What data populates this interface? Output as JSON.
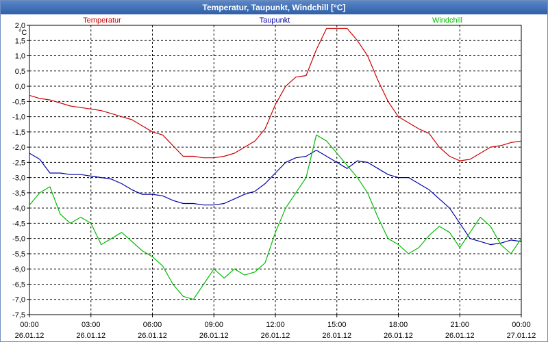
{
  "window": {
    "title": "Temperatur, Taupunkt, Windchill [°C]"
  },
  "chart_data": {
    "type": "line",
    "title": "Temperatur, Taupunkt, Windchill [°C]",
    "ylabel": "°C",
    "ylim": [
      -7.5,
      2.0
    ],
    "y_step": 0.5,
    "y_ticks": [
      "2,0",
      "1,5",
      "1,0",
      "0,5",
      "0,0",
      "-0,5",
      "-1,0",
      "-1,5",
      "-2,0",
      "-2,5",
      "-3,0",
      "-3,5",
      "-4,0",
      "-4,5",
      "-5,0",
      "-5,5",
      "-6,0",
      "-6,5",
      "-7,0",
      "-7,5"
    ],
    "xlim": [
      0,
      24
    ],
    "x_ticks": [
      {
        "time": "00:00",
        "date": "26.01.12"
      },
      {
        "time": "03:00",
        "date": "26.01.12"
      },
      {
        "time": "06:00",
        "date": "26.01.12"
      },
      {
        "time": "09:00",
        "date": "26.01.12"
      },
      {
        "time": "12:00",
        "date": "26.01.12"
      },
      {
        "time": "15:00",
        "date": "26.01.12"
      },
      {
        "time": "18:00",
        "date": "26.01.12"
      },
      {
        "time": "21:00",
        "date": "26.01.12"
      },
      {
        "time": "00:00",
        "date": "27.01.12"
      }
    ],
    "grid": true,
    "legend_position": "top",
    "series": [
      {
        "name": "Temperatur",
        "color": "#cc0000",
        "x": [
          0,
          0.5,
          1,
          1.5,
          2,
          2.5,
          3,
          3.5,
          4,
          4.5,
          5,
          5.5,
          6,
          6.5,
          7,
          7.5,
          8,
          8.5,
          9,
          9.5,
          10,
          10.5,
          11,
          11.5,
          12,
          12.5,
          13,
          13.5,
          14,
          14.5,
          15,
          15.5,
          16,
          16.5,
          17,
          17.5,
          18,
          18.5,
          19,
          19.5,
          20,
          20.5,
          21,
          21.5,
          22,
          22.5,
          23,
          23.5,
          24
        ],
        "values": [
          -0.3,
          -0.4,
          -0.45,
          -0.55,
          -0.65,
          -0.7,
          -0.75,
          -0.8,
          -0.9,
          -1.0,
          -1.1,
          -1.3,
          -1.5,
          -1.6,
          -1.95,
          -2.3,
          -2.3,
          -2.35,
          -2.35,
          -2.3,
          -2.2,
          -2.0,
          -1.8,
          -1.4,
          -0.6,
          0.0,
          0.3,
          0.35,
          1.2,
          1.9,
          1.9,
          1.9,
          1.5,
          1.0,
          0.2,
          -0.5,
          -1.0,
          -1.2,
          -1.4,
          -1.55,
          -2.0,
          -2.3,
          -2.45,
          -2.4,
          -2.2,
          -2.0,
          -1.95,
          -1.85,
          -1.8
        ]
      },
      {
        "name": "Taupunkt",
        "color": "#0000aa",
        "x": [
          0,
          0.5,
          1,
          1.5,
          2,
          2.5,
          3,
          3.5,
          4,
          4.5,
          5,
          5.5,
          6,
          6.5,
          7,
          7.5,
          8,
          8.5,
          9,
          9.5,
          10,
          10.5,
          11,
          11.5,
          12,
          12.5,
          13,
          13.5,
          14,
          14.5,
          15,
          15.5,
          16,
          16.5,
          17,
          17.5,
          18,
          18.5,
          19,
          19.5,
          20,
          20.5,
          21,
          21.5,
          22,
          22.5,
          23,
          23.5,
          24
        ],
        "values": [
          -2.2,
          -2.4,
          -2.85,
          -2.85,
          -2.9,
          -2.9,
          -2.95,
          -3.0,
          -3.05,
          -3.2,
          -3.4,
          -3.55,
          -3.55,
          -3.6,
          -3.75,
          -3.85,
          -3.85,
          -3.9,
          -3.9,
          -3.85,
          -3.7,
          -3.55,
          -3.45,
          -3.2,
          -2.85,
          -2.5,
          -2.35,
          -2.3,
          -2.1,
          -2.3,
          -2.5,
          -2.7,
          -2.45,
          -2.5,
          -2.7,
          -2.9,
          -3.0,
          -3.0,
          -3.2,
          -3.4,
          -3.7,
          -4.0,
          -4.5,
          -5.0,
          -5.1,
          -5.2,
          -5.15,
          -5.05,
          -5.1
        ]
      },
      {
        "name": "Windchill",
        "color": "#00bb00",
        "x": [
          0,
          0.5,
          1,
          1.5,
          2,
          2.5,
          3,
          3.5,
          4,
          4.5,
          5,
          5.5,
          6,
          6.5,
          7,
          7.5,
          8,
          8.5,
          9,
          9.5,
          10,
          10.5,
          11,
          11.5,
          12,
          12.5,
          13,
          13.5,
          14,
          14.5,
          15,
          15.5,
          16,
          16.5,
          17,
          17.5,
          18,
          18.5,
          19,
          19.5,
          20,
          20.5,
          21,
          21.5,
          22,
          22.5,
          23,
          23.5,
          24
        ],
        "values": [
          -3.9,
          -3.5,
          -3.3,
          -4.2,
          -4.5,
          -4.3,
          -4.5,
          -5.2,
          -5.0,
          -4.8,
          -5.1,
          -5.4,
          -5.6,
          -5.9,
          -6.5,
          -6.9,
          -7.0,
          -6.5,
          -6.0,
          -6.3,
          -6.0,
          -6.2,
          -6.1,
          -5.8,
          -4.8,
          -4.0,
          -3.5,
          -3.0,
          -1.6,
          -1.8,
          -2.2,
          -2.6,
          -3.0,
          -3.5,
          -4.3,
          -5.0,
          -5.2,
          -5.5,
          -5.3,
          -4.9,
          -4.6,
          -4.8,
          -5.3,
          -4.8,
          -4.3,
          -4.6,
          -5.2,
          -5.5,
          -5.0
        ]
      }
    ]
  }
}
